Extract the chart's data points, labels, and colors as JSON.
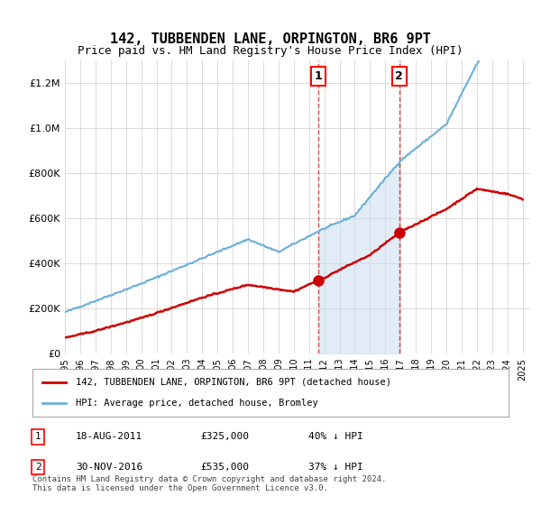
{
  "title": "142, TUBBENDEN LANE, ORPINGTON, BR6 9PT",
  "subtitle": "Price paid vs. HM Land Registry's House Price Index (HPI)",
  "red_label": "142, TUBBENDEN LANE, ORPINGTON, BR6 9PT (detached house)",
  "blue_label": "HPI: Average price, detached house, Bromley",
  "sale1_date": "18-AUG-2011",
  "sale1_price": 325000,
  "sale1_pct": "40% ↓ HPI",
  "sale1_year": 2011.625,
  "sale2_date": "30-NOV-2016",
  "sale2_price": 535000,
  "sale2_pct": "37% ↓ HPI",
  "sale2_year": 2016.917,
  "footer": "Contains HM Land Registry data © Crown copyright and database right 2024.\nThis data is licensed under the Open Government Licence v3.0.",
  "red_color": "#cc0000",
  "blue_color": "#6baed6",
  "shade_color": "#c6dbef",
  "ylim_max": 1300000,
  "bg_color": "#ffffff"
}
